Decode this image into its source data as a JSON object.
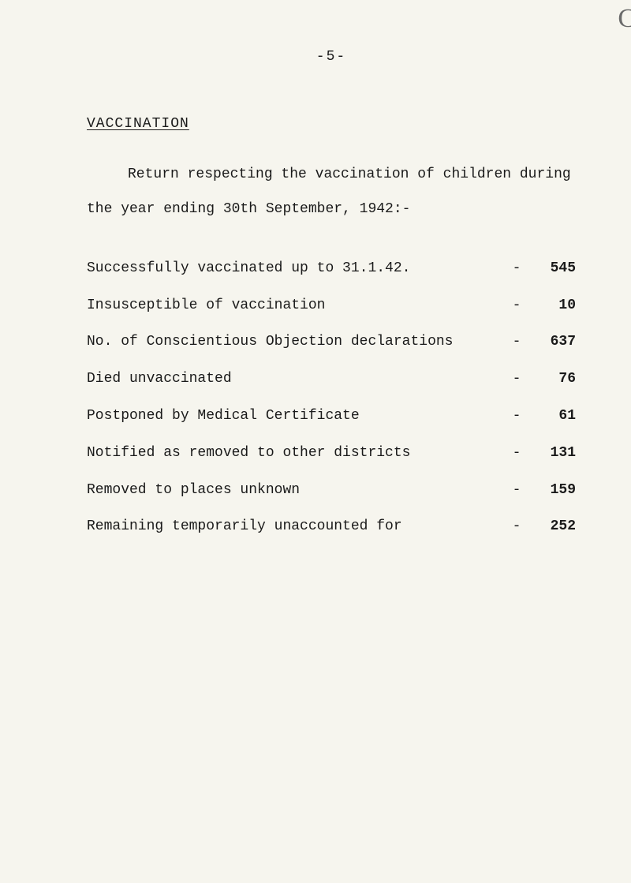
{
  "pageNumber": "-5-",
  "sectionHeading": "VACCINATION",
  "intro": "Return respecting the vaccination of children during the year ending 30th September, 1942:-",
  "rows": [
    {
      "label": "Successfully vaccinated up to 31.1.42.",
      "value": "545"
    },
    {
      "label": "Insusceptible of vaccination",
      "value": "10"
    },
    {
      "label": "No. of Conscientious Objection declarations",
      "value": "637"
    },
    {
      "label": "Died unvaccinated",
      "value": "76"
    },
    {
      "label": "Postponed by Medical Certificate",
      "value": "61"
    },
    {
      "label": "Notified as removed to other districts",
      "value": "131"
    },
    {
      "label": "Removed to places unknown",
      "value": "159"
    },
    {
      "label": "Remaining temporarily unaccounted for",
      "value": "252"
    }
  ],
  "dash": "-",
  "edgeGlyph": "C"
}
